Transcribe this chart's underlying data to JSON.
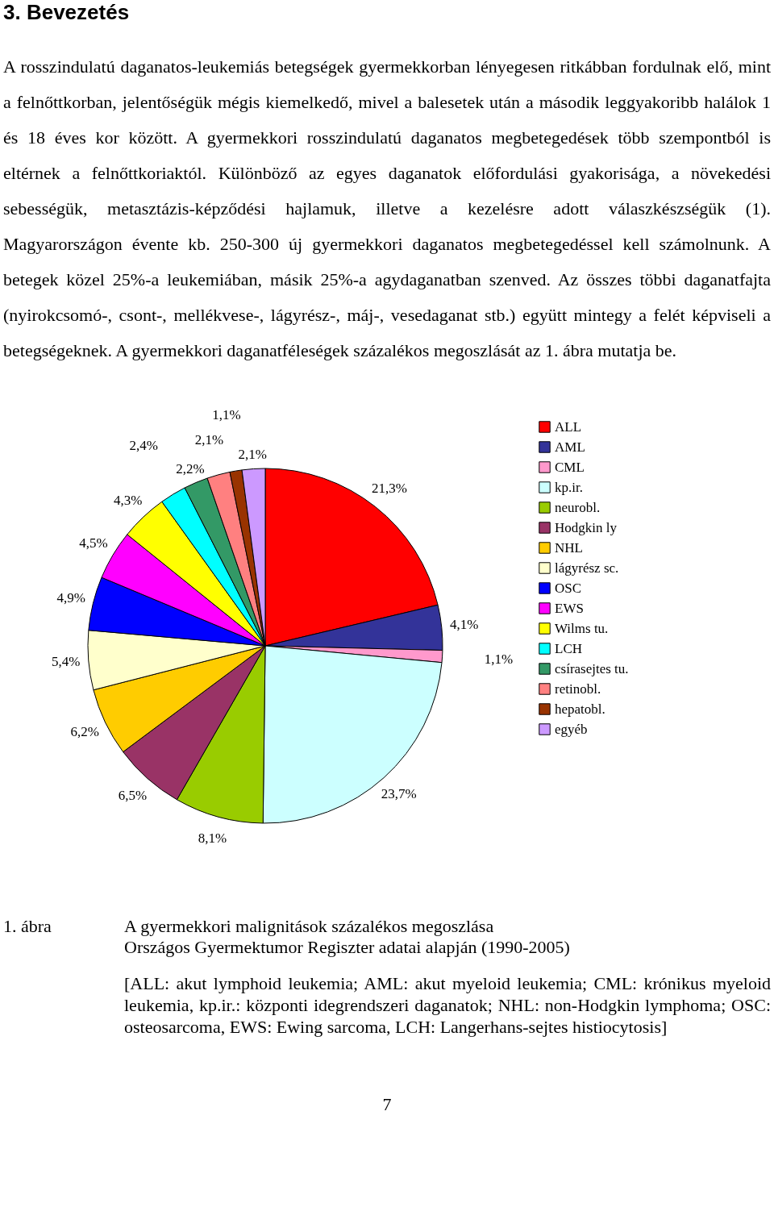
{
  "chart_data": {
    "type": "pie",
    "title": "A gyermekkori malignitások százalékos megoszlása",
    "subtitle": "Országos Gyermektumor Regiszter adatai alapján (1990-2005)",
    "annotations": [
      "3. Bevezetés",
      "A rosszindulatú daganatos-leukemiás betegségek gyermekkorban lényegesen ritkábban fordulnak elő, mint a felnőttkorban, jelentőségük mégis kiemelkedő, mivel a balesetek után a második leggyakoribb halálok 1 és 18 éves kor között. A gyermekkori rosszindulatú daganatos megbetegedések több szempontból is eltérnek a felnőttkoriaktól. Különböző az egyes daganatok előfordulási gyakorisága, a növekedési sebességük, metasztázis-képződési hajlamuk, illetve a kezelésre adott válaszkészségük (1). Magyarországon évente kb. 250-300 új gyermekkori daganatos megbetegedéssel kell számolnunk. A betegek közel 25%-a leukemiában, másik 25%-a agydaganatban szenved. Az összes többi daganatfajta (nyirokcsomó-, csont-, mellékvese-, lágyrész-, máj-, vesedaganat stb.) együtt mintegy a felét képviseli a betegségeknek. A gyermekkori daganatféleségek százalékos megoszlását az 1. ábra mutatja be.",
      "1. ábra",
      "[ALL: akut lymphoid leukemia; AML: akut myeloid leukemia; CML: krónikus myeloid leukemia, kp.ir.: központi idegrendszeri daganatok; NHL: non-Hodgkin lymphoma; OSC: osteosarcoma, EWS: Ewing sarcoma, LCH: Langerhans-sejtes histiocytosis]",
      "7"
    ],
    "categories": [
      "ALL",
      "AML",
      "CML",
      "kp.ir.",
      "neurobl.",
      "Hodgkin ly",
      "NHL",
      "lágyrész sc.",
      "OSC",
      "EWS",
      "Wilms tu.",
      "LCH",
      "csírasejtes tu.",
      "retinobl.",
      "hepatobl.",
      "egyéb"
    ],
    "values": [
      21.3,
      4.1,
      1.1,
      23.7,
      8.1,
      6.5,
      6.2,
      5.4,
      4.9,
      4.5,
      4.3,
      2.4,
      2.2,
      2.1,
      1.1,
      2.1
    ],
    "value_labels": [
      "21,3%",
      "4,1%",
      "1,1%",
      "23,7%",
      "8,1%",
      "6,5%",
      "6,2%",
      "5,4%",
      "4,9%",
      "4,5%",
      "4,3%",
      "2,4%",
      "2,2%",
      "2,1%",
      "1,1%",
      "2,1%"
    ],
    "colors": [
      "#ff0000",
      "#333399",
      "#ff99cc",
      "#ccffff",
      "#99cc00",
      "#993366",
      "#ffcc00",
      "#ffffcc",
      "#0000ff",
      "#ff00ff",
      "#ffff00",
      "#00ffff",
      "#339966",
      "#ff8080",
      "#993300",
      "#cc99ff"
    ],
    "legend": "right"
  }
}
